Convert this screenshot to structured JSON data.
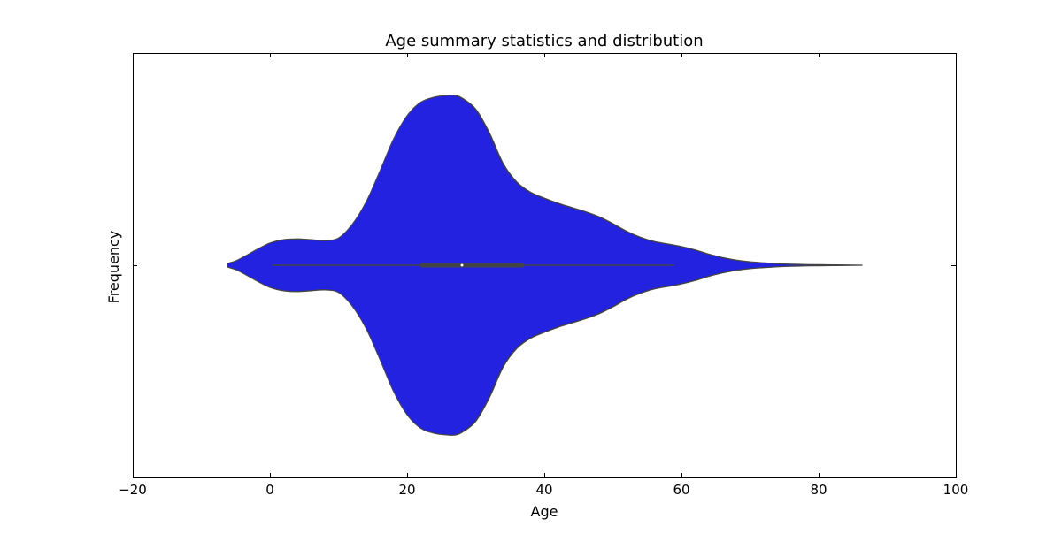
{
  "chart_data": {
    "type": "violin",
    "title": "Age summary statistics and distribution",
    "xlabel": "Age",
    "ylabel": "Frequency",
    "xlim": [
      -20,
      100
    ],
    "xticks": [
      -20,
      0,
      20,
      40,
      60,
      80,
      100
    ],
    "xtick_labels": [
      "−20",
      "0",
      "20",
      "40",
      "60",
      "80",
      "100"
    ],
    "density_max_halfwidth": 1.0,
    "density": {
      "x": [
        -6.2,
        -5,
        -4,
        -2,
        0,
        2,
        4,
        6,
        8,
        10,
        12,
        14,
        16,
        18,
        20,
        22,
        24,
        26,
        27,
        28,
        30,
        32,
        34,
        36,
        38,
        40,
        42,
        44,
        46,
        48,
        50,
        52,
        54,
        56,
        58,
        60,
        62,
        64,
        66,
        68,
        70,
        72,
        74,
        76,
        78,
        80,
        82,
        84,
        86.4
      ],
      "halfwidth": [
        0.01,
        0.025,
        0.045,
        0.09,
        0.13,
        0.15,
        0.155,
        0.15,
        0.145,
        0.16,
        0.24,
        0.37,
        0.55,
        0.74,
        0.88,
        0.96,
        0.99,
        1.0,
        1.0,
        0.985,
        0.92,
        0.78,
        0.6,
        0.49,
        0.43,
        0.395,
        0.365,
        0.34,
        0.315,
        0.285,
        0.245,
        0.2,
        0.165,
        0.14,
        0.125,
        0.11,
        0.09,
        0.065,
        0.045,
        0.03,
        0.02,
        0.014,
        0.009,
        0.006,
        0.004,
        0.003,
        0.002,
        0.001,
        0.0
      ]
    },
    "box": {
      "whisker_low": 0.4,
      "q1": 22,
      "median": 28,
      "q3": 37,
      "whisker_high": 59
    },
    "colors": {
      "violin_fill": "#2222e0",
      "violin_edge": "#444444",
      "box": "#444444",
      "median": "#ffffff"
    },
    "grid": false,
    "legend": "none"
  }
}
